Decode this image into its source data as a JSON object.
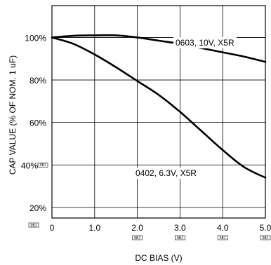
{
  "chart_data": {
    "type": "line",
    "xlabel": "DC BIAS (V)",
    "ylabel": "CAP VALUE (% OF NOM. 1 uF)",
    "xlim": [
      0,
      5
    ],
    "ylim": [
      15,
      115
    ],
    "grid": true,
    "x_ticks": [
      "0",
      "1.0",
      "2.0",
      "3.0",
      "4.0",
      "5.0"
    ],
    "y_ticks": [
      "20%",
      "40%",
      "60%",
      "80%",
      "100%"
    ],
    "obj_marker": "OBJ",
    "annotations": [
      "0603, 10V, X5R",
      "0402, 6.3V, X5R"
    ],
    "series": [
      {
        "x": [
          0,
          0.5,
          1.0,
          1.5,
          2.0,
          2.5,
          3.0,
          3.5,
          4.0,
          4.5,
          5.0
        ],
        "values": [
          100,
          100.8,
          101,
          101,
          100,
          98.5,
          97,
          95,
          93,
          91,
          88.5
        ]
      },
      {
        "x": [
          0,
          0.5,
          1.0,
          1.5,
          2.0,
          2.5,
          3.0,
          3.5,
          4.0,
          4.5,
          5.0
        ],
        "values": [
          100,
          97,
          92,
          86,
          79.5,
          73,
          65,
          56,
          47,
          39,
          34
        ]
      }
    ]
  }
}
